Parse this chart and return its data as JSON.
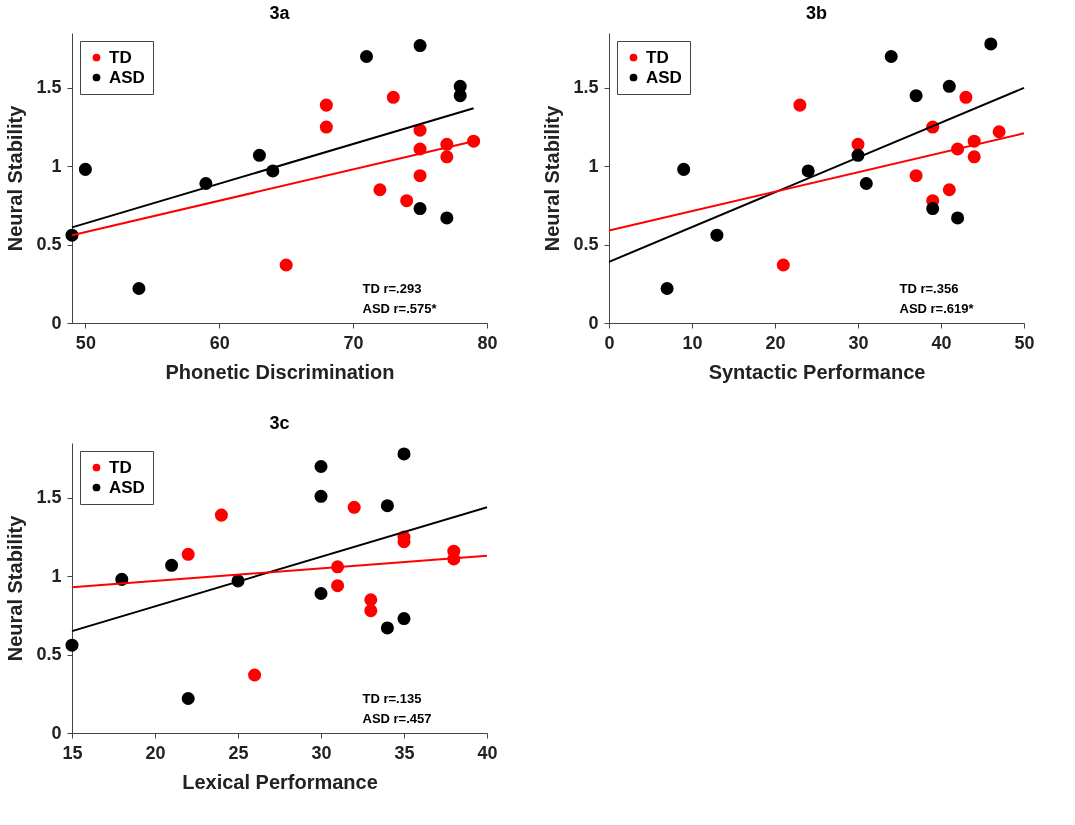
{
  "chart_data": [
    {
      "type": "scatter",
      "title": "3a",
      "xlabel": "Phonetic Discrimination",
      "ylabel": "Neural Stability",
      "xlim": [
        49,
        80
      ],
      "xticks": [
        50,
        60,
        70,
        80
      ],
      "ylim": [
        0,
        1.85
      ],
      "yticks": [
        0,
        0.5,
        1,
        1.5
      ],
      "legend": "top left",
      "annotations": [
        "TD r=.293",
        "ASD r=.575*"
      ],
      "series": [
        {
          "name": "TD",
          "color": "#ff0000",
          "marker": "circle",
          "x": [
            68,
            68,
            73,
            75,
            75,
            75,
            77,
            77,
            79,
            72,
            74,
            65
          ],
          "values": [
            1.39,
            1.25,
            1.44,
            1.23,
            1.11,
            0.94,
            1.14,
            1.06,
            1.16,
            0.85,
            0.78,
            0.37
          ]
        },
        {
          "name": "ASD",
          "color": "#000000",
          "marker": "circle",
          "x": [
            49,
            50,
            54,
            59,
            63,
            64,
            71,
            75,
            78,
            78,
            75,
            77
          ],
          "values": [
            0.56,
            0.98,
            0.22,
            0.89,
            1.07,
            0.97,
            1.7,
            1.77,
            1.51,
            1.45,
            0.73,
            0.67
          ]
        },
        {
          "type": "line",
          "color": "#000000",
          "marker": "none",
          "x": [
            49,
            79
          ],
          "values": [
            0.61,
            1.37
          ]
        },
        {
          "type": "line",
          "color": "#ff0000",
          "marker": "none",
          "x": [
            49,
            79
          ],
          "values": [
            0.56,
            1.16
          ]
        }
      ]
    },
    {
      "type": "scatter",
      "title": "3b",
      "xlabel": "Syntactic Performance",
      "ylabel": "Neural Stability",
      "xlim": [
        0,
        50
      ],
      "xticks": [
        0,
        10,
        20,
        30,
        40,
        50
      ],
      "ylim": [
        0,
        1.85
      ],
      "yticks": [
        0,
        0.5,
        1,
        1.5
      ],
      "legend": "top left",
      "annotations": [
        "TD r=.356",
        "ASD r=.619*"
      ],
      "series": [
        {
          "name": "TD",
          "color": "#ff0000",
          "marker": "circle",
          "x": [
            23,
            30,
            21,
            37,
            39,
            39,
            41,
            42,
            43,
            44,
            44,
            47
          ],
          "values": [
            1.39,
            1.14,
            0.37,
            0.94,
            1.25,
            0.78,
            0.85,
            1.11,
            1.44,
            1.16,
            1.06,
            1.22
          ]
        },
        {
          "name": "ASD",
          "color": "#000000",
          "marker": "circle",
          "x": [
            7,
            9,
            13,
            24,
            30,
            31,
            34,
            37,
            41,
            39,
            42,
            46
          ],
          "values": [
            0.22,
            0.98,
            0.56,
            0.97,
            1.07,
            0.89,
            1.7,
            1.45,
            1.51,
            0.73,
            0.67,
            1.78
          ]
        },
        {
          "type": "line",
          "color": "#000000",
          "marker": "none",
          "x": [
            0,
            50
          ],
          "values": [
            0.39,
            1.5
          ]
        },
        {
          "type": "line",
          "color": "#ff0000",
          "marker": "none",
          "x": [
            0,
            50
          ],
          "values": [
            0.59,
            1.21
          ]
        }
      ]
    },
    {
      "type": "scatter",
      "title": "3c",
      "xlabel": "Lexical Performance",
      "ylabel": "Neural Stability",
      "xlim": [
        15,
        40
      ],
      "xticks": [
        15,
        20,
        25,
        30,
        35,
        40
      ],
      "ylim": [
        0,
        1.85
      ],
      "yticks": [
        0,
        0.5,
        1,
        1.5
      ],
      "legend": "top left",
      "annotations": [
        "TD r=.135",
        "ASD r=.457"
      ],
      "series": [
        {
          "name": "TD",
          "color": "#ff0000",
          "marker": "circle",
          "x": [
            24,
            22,
            26,
            31,
            31,
            32,
            33,
            33,
            35,
            35,
            38,
            38
          ],
          "values": [
            1.39,
            1.14,
            0.37,
            1.06,
            0.94,
            1.44,
            0.85,
            0.78,
            1.25,
            1.22,
            1.16,
            1.11
          ]
        },
        {
          "name": "ASD",
          "color": "#000000",
          "marker": "circle",
          "x": [
            15,
            18,
            21,
            22,
            25,
            30,
            30,
            30,
            34,
            34,
            35,
            35
          ],
          "values": [
            0.56,
            0.98,
            1.07,
            0.22,
            0.97,
            1.7,
            1.51,
            0.89,
            1.45,
            0.67,
            1.78,
            0.73
          ]
        },
        {
          "type": "line",
          "color": "#000000",
          "marker": "none",
          "x": [
            15,
            40
          ],
          "values": [
            0.65,
            1.44
          ]
        },
        {
          "type": "line",
          "color": "#ff0000",
          "marker": "none",
          "x": [
            15,
            40
          ],
          "values": [
            0.93,
            1.13
          ]
        }
      ]
    }
  ]
}
